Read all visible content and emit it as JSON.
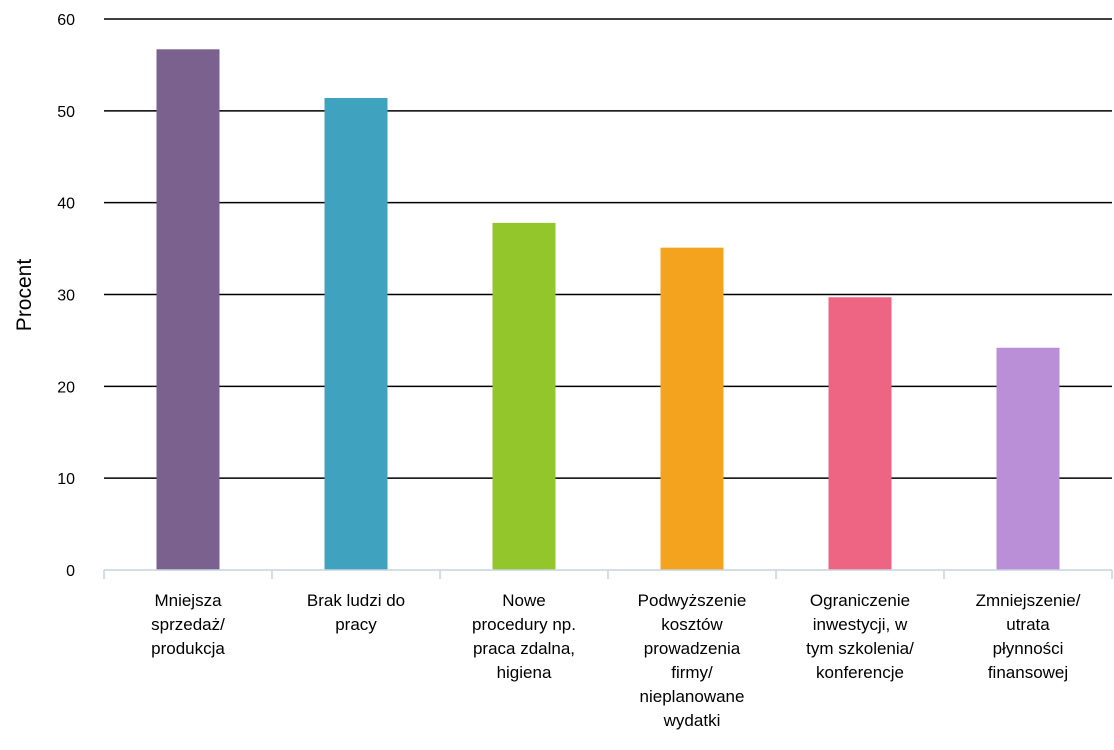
{
  "chart_data": {
    "type": "bar",
    "ylabel": "Procent",
    "xlabel": "",
    "ylim": [
      0,
      60
    ],
    "yticks": [
      0,
      10,
      20,
      30,
      40,
      50,
      60
    ],
    "grid": true,
    "categories": [
      [
        "Mniejsza",
        "sprzedaż/",
        "produkcja"
      ],
      [
        "Brak ludzi do",
        "pracy"
      ],
      [
        "Nowe",
        "procedury np.",
        "praca zdalna,",
        "higiena"
      ],
      [
        "Podwyższenie",
        "kosztów",
        "prowadzenia",
        "firmy/",
        "nieplanowane",
        "wydatki"
      ],
      [
        "Ograniczenie",
        "inwestycji, w",
        "tym szkolenia/",
        "konferencje"
      ],
      [
        "Zmniejszenie/",
        "utrata",
        "płynności",
        "finansowej"
      ]
    ],
    "values": [
      56.7,
      51.4,
      37.8,
      35.1,
      29.7,
      24.2
    ],
    "colors": [
      "#7b618e",
      "#3fa3c0",
      "#93c62a",
      "#f3a31d",
      "#ee6584",
      "#bb8fd8"
    ]
  }
}
